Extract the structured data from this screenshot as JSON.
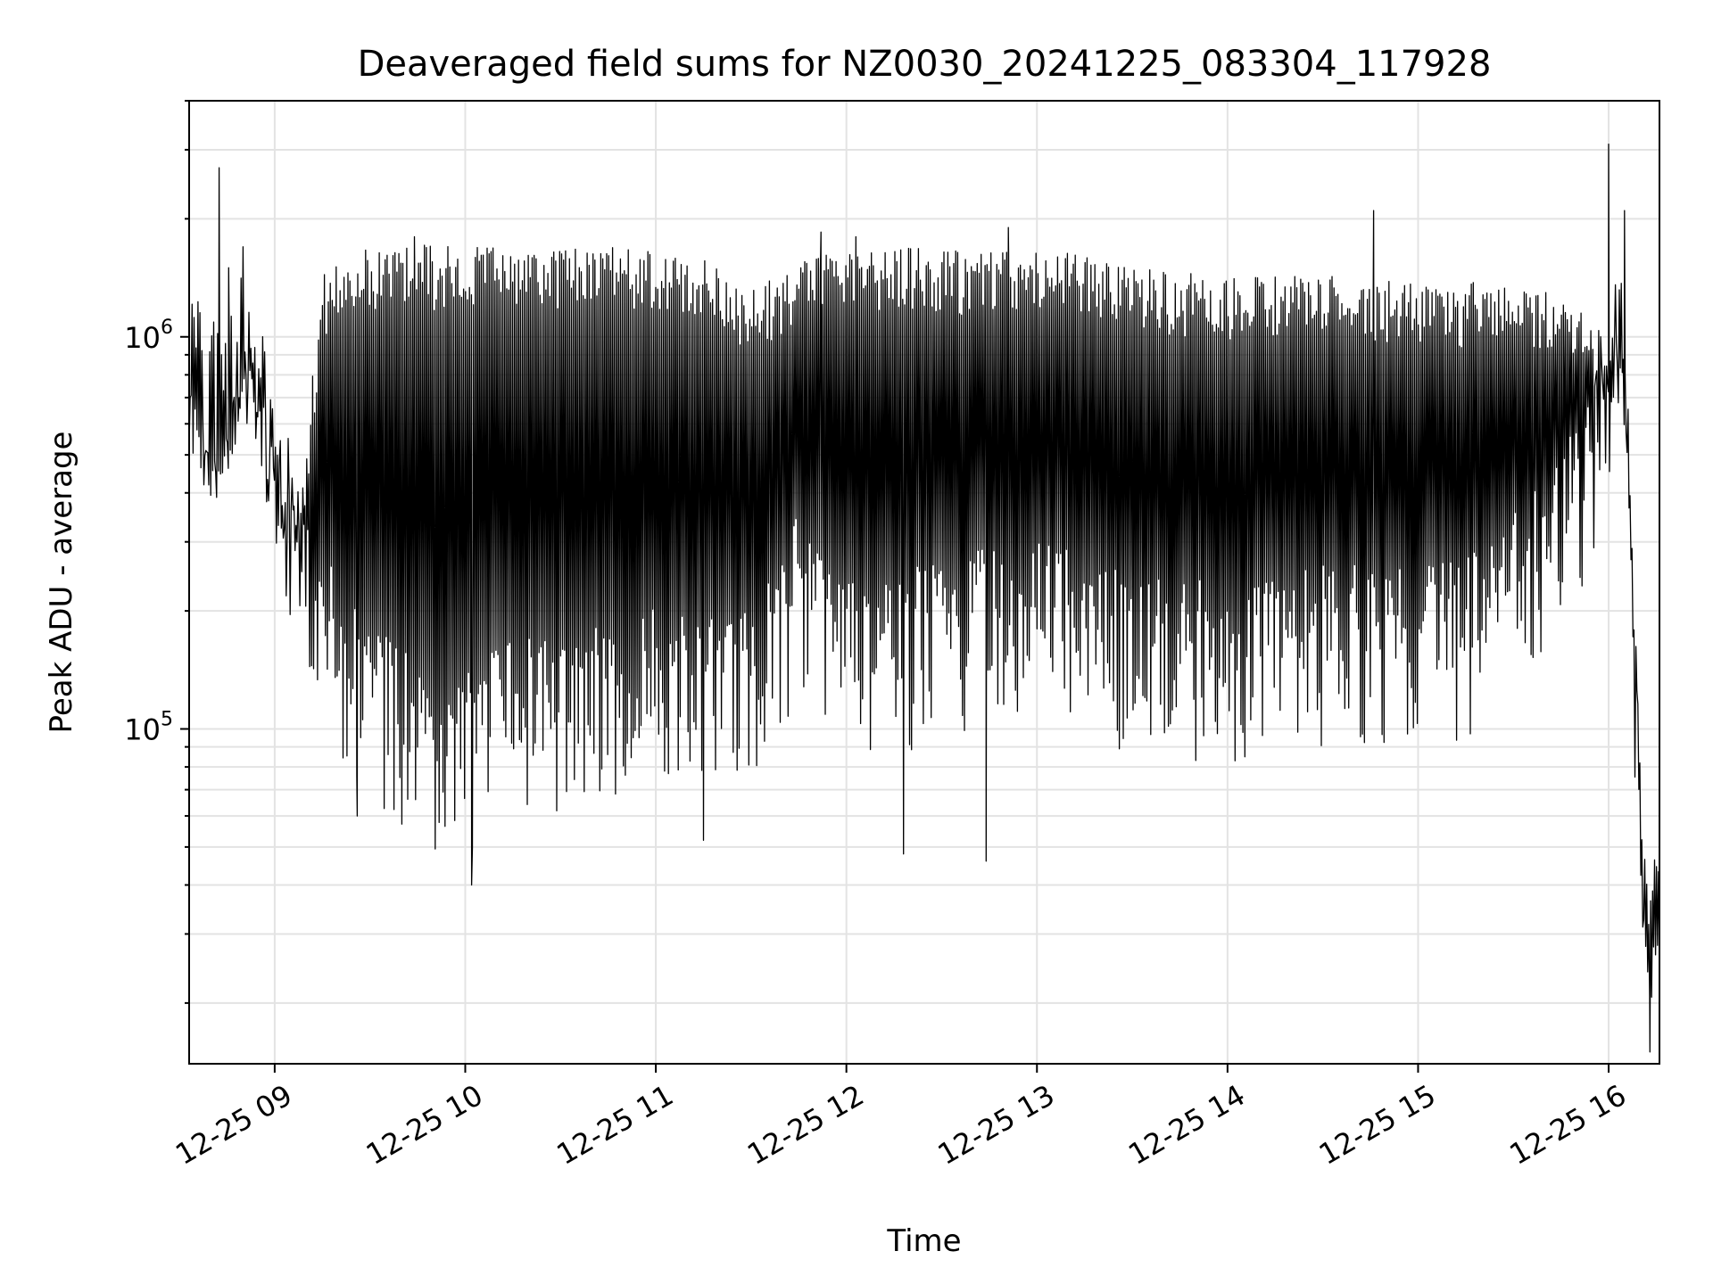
{
  "chart_data": {
    "type": "line",
    "title": "Deaveraged field sums for NZ0030_20241225_083304_117928",
    "xlabel": "Time",
    "ylabel": "Peak ADU - average",
    "x_start": "2024-12-25T08:33:04",
    "x_range": [
      "2024-12-25T08:33:04",
      "2024-12-25T16:16:00"
    ],
    "x_ticks": [
      "2024-12-25T09:00",
      "2024-12-25T10:00",
      "2024-12-25T11:00",
      "2024-12-25T12:00",
      "2024-12-25T13:00",
      "2024-12-25T14:00",
      "2024-12-25T15:00",
      "2024-12-25T16:00"
    ],
    "x_tick_labels": [
      "12-25 09",
      "12-25 10",
      "12-25 11",
      "12-25 12",
      "12-25 13",
      "12-25 14",
      "12-25 15",
      "12-25 16"
    ],
    "y_scale": "log",
    "y_range": [
      14000,
      4000000
    ],
    "y_major_ticks": [
      100000,
      1000000
    ],
    "y_tick_labels": [
      {
        "base": "10",
        "exp": "5"
      },
      {
        "base": "10",
        "exp": "6"
      }
    ],
    "grid": true,
    "line_color": "#000000",
    "series": [
      {
        "name": "",
        "x": [
          "2024-12-25T08:33:04",
          "2024-12-25T08:36",
          "2024-12-25T08:40",
          "2024-12-25T08:44",
          "2024-12-25T08:50",
          "2024-12-25T08:54",
          "2024-12-25T08:58",
          "2024-12-25T09:03",
          "2024-12-25T09:08",
          "2024-12-25T09:15",
          "2024-12-25T09:22",
          "2024-12-25T09:30",
          "2024-12-25T09:40",
          "2024-12-25T09:50",
          "2024-12-25T10:00",
          "2024-12-25T10:15",
          "2024-12-25T10:30",
          "2024-12-25T10:45",
          "2024-12-25T11:00",
          "2024-12-25T11:15",
          "2024-12-25T11:30",
          "2024-12-25T11:45",
          "2024-12-25T12:00",
          "2024-12-25T12:20",
          "2024-12-25T12:40",
          "2024-12-25T13:00",
          "2024-12-25T13:20",
          "2024-12-25T13:40",
          "2024-12-25T14:00",
          "2024-12-25T14:20",
          "2024-12-25T14:40",
          "2024-12-25T15:00",
          "2024-12-25T15:20",
          "2024-12-25T15:40",
          "2024-12-25T15:55",
          "2024-12-25T16:03",
          "2024-12-25T16:06",
          "2024-12-25T16:09",
          "2024-12-25T16:12",
          "2024-12-25T16:16"
        ],
        "upper": [
          700000,
          600000,
          520000,
          480000,
          950000,
          700000,
          550000,
          400000,
          350000,
          1300000,
          1500000,
          1550000,
          1600000,
          1550000,
          1550000,
          1550000,
          1550000,
          1550000,
          1500000,
          1450000,
          1200000,
          1400000,
          1550000,
          1550000,
          1500000,
          1550000,
          1450000,
          1350000,
          1300000,
          1300000,
          1300000,
          1250000,
          1250000,
          1200000,
          1000000,
          900000,
          700000,
          120000,
          25000,
          30000
        ],
        "lower": [
          600000,
          550000,
          480000,
          420000,
          800000,
          550000,
          380000,
          250000,
          200000,
          130000,
          90000,
          80000,
          70000,
          60000,
          60000,
          70000,
          75000,
          80000,
          85000,
          80000,
          85000,
          150000,
          100000,
          110000,
          120000,
          130000,
          110000,
          100000,
          100000,
          110000,
          110000,
          110000,
          120000,
          200000,
          300000,
          650000,
          500000,
          50000,
          17000,
          22000
        ],
        "spikes": [
          {
            "x": "2024-12-25T08:42:30",
            "y": 2700000
          },
          {
            "x": "2024-12-25T08:45:30",
            "y": 1500000
          },
          {
            "x": "2024-12-25T09:26",
            "y": 60000
          },
          {
            "x": "2024-12-25T09:44",
            "y": 1800000
          },
          {
            "x": "2024-12-25T10:02",
            "y": 40000
          },
          {
            "x": "2024-12-25T11:15",
            "y": 52000
          },
          {
            "x": "2024-12-25T11:52",
            "y": 1850000
          },
          {
            "x": "2024-12-25T12:03",
            "y": 1800000
          },
          {
            "x": "2024-12-25T12:18",
            "y": 48000
          },
          {
            "x": "2024-12-25T12:44",
            "y": 46000
          },
          {
            "x": "2024-12-25T12:51",
            "y": 1900000
          },
          {
            "x": "2024-12-25T14:46",
            "y": 2100000
          },
          {
            "x": "2024-12-25T16:00",
            "y": 3100000
          },
          {
            "x": "2024-12-25T16:05",
            "y": 2100000
          },
          {
            "x": "2024-12-25T16:13",
            "y": 15000
          }
        ]
      }
    ]
  }
}
